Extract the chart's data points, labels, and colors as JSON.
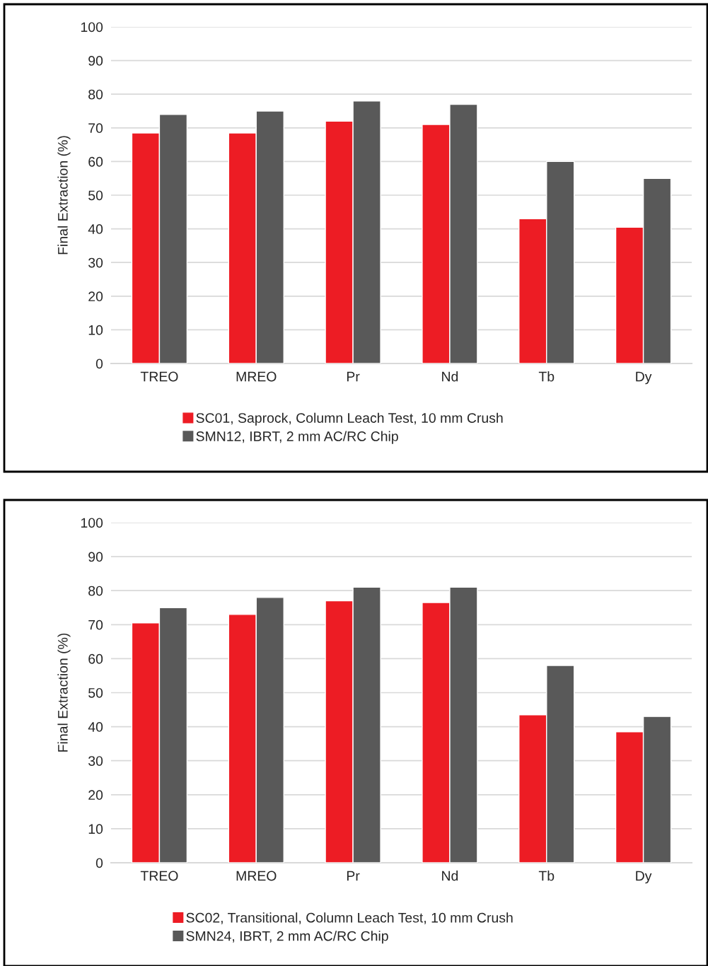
{
  "chart_data": [
    {
      "type": "bar",
      "ylabel": "Final Extraction (%)",
      "categories": [
        "TREO",
        "MREO",
        "Pr",
        "Nd",
        "Tb",
        "Dy"
      ],
      "series": [
        {
          "name": "SC01, Saprock, Column Leach Test, 10 mm Crush",
          "color": "#ed1c24",
          "values": [
            68.5,
            68.5,
            72,
            71,
            43,
            40.5
          ]
        },
        {
          "name": "SMN12, IBRT, 2 mm AC/RC Chip",
          "color": "#595959",
          "values": [
            74,
            75,
            78,
            77,
            60,
            55
          ]
        }
      ],
      "ylim": [
        0,
        100
      ],
      "yticks": [
        0,
        10,
        20,
        30,
        40,
        50,
        60,
        70,
        80,
        90,
        100
      ],
      "grid": "y",
      "legend": "bottom"
    },
    {
      "type": "bar",
      "ylabel": "Final Extraction (%)",
      "categories": [
        "TREO",
        "MREO",
        "Pr",
        "Nd",
        "Tb",
        "Dy"
      ],
      "series": [
        {
          "name": "SC02, Transitional, Column Leach Test, 10 mm Crush",
          "color": "#ed1c24",
          "values": [
            70.5,
            73,
            77,
            76.5,
            43.5,
            38.5
          ]
        },
        {
          "name": "SMN24, IBRT, 2 mm AC/RC Chip",
          "color": "#595959",
          "values": [
            75,
            78,
            81,
            81,
            58,
            43
          ]
        }
      ],
      "ylim": [
        0,
        100
      ],
      "yticks": [
        0,
        10,
        20,
        30,
        40,
        50,
        60,
        70,
        80,
        90,
        100
      ],
      "grid": "y",
      "legend": "bottom"
    }
  ]
}
